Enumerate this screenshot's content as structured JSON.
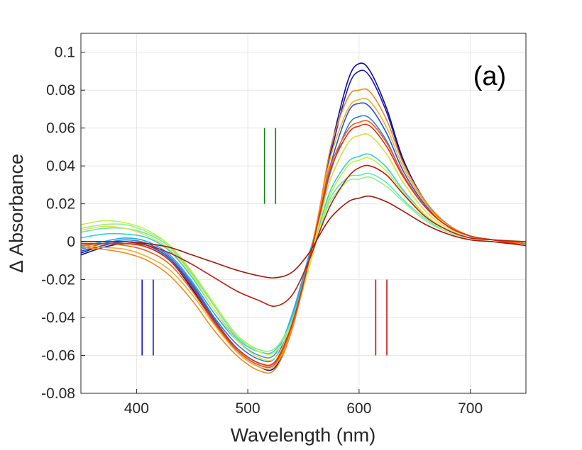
{
  "chart_data": {
    "type": "line",
    "title": "",
    "panel_label": "(a)",
    "xlabel": "Wavelength (nm)",
    "ylabel": "Δ Absorbance",
    "xlim": [
      350,
      750
    ],
    "ylim": [
      -0.08,
      0.11
    ],
    "xticks": [
      400,
      500,
      600,
      700
    ],
    "xtick_labels": [
      "400",
      "500",
      "600",
      "700"
    ],
    "yticks": [
      -0.08,
      -0.06,
      -0.04,
      -0.02,
      0,
      0.02,
      0.04,
      0.06,
      0.08,
      0.1
    ],
    "ytick_labels": [
      "-0.08",
      "-0.06",
      "-0.04",
      "-0.02",
      "0",
      "0.02",
      "0.04",
      "0.06",
      "0.08",
      "0.1"
    ],
    "grid": true,
    "legend": "none",
    "x_points": [
      350,
      370,
      390,
      410,
      430,
      450,
      470,
      490,
      510,
      525,
      540,
      555,
      565,
      575,
      590,
      600,
      610,
      625,
      640,
      660,
      680,
      700,
      720,
      750
    ],
    "series": [
      {
        "color": "#0b0b8e",
        "values": [
          -0.007,
          -0.003,
          -0.001,
          -0.003,
          -0.01,
          -0.025,
          -0.043,
          -0.058,
          -0.066,
          -0.066,
          -0.045,
          -0.01,
          0.018,
          0.05,
          0.085,
          0.094,
          0.09,
          0.07,
          0.043,
          0.021,
          0.009,
          0.003,
          0.001,
          -0.001
        ]
      },
      {
        "color": "#1a1ab0",
        "values": [
          -0.006,
          -0.002,
          0.0,
          -0.002,
          -0.009,
          -0.024,
          -0.042,
          -0.057,
          -0.065,
          -0.064,
          -0.043,
          -0.009,
          0.017,
          0.047,
          0.081,
          0.09,
          0.087,
          0.068,
          0.042,
          0.021,
          0.009,
          0.003,
          0.001,
          -0.001
        ]
      },
      {
        "color": "#2255d8",
        "values": [
          -0.005,
          -0.002,
          0.0,
          -0.002,
          -0.009,
          -0.023,
          -0.041,
          -0.056,
          -0.064,
          -0.063,
          -0.042,
          -0.009,
          0.016,
          0.042,
          0.068,
          0.073,
          0.071,
          0.057,
          0.037,
          0.019,
          0.008,
          0.003,
          0.001,
          -0.001
        ]
      },
      {
        "color": "#2e7fe0",
        "values": [
          -0.004,
          -0.001,
          0.001,
          -0.001,
          -0.008,
          -0.022,
          -0.04,
          -0.054,
          -0.062,
          -0.061,
          -0.04,
          -0.008,
          0.015,
          0.038,
          0.061,
          0.066,
          0.065,
          0.053,
          0.035,
          0.018,
          0.008,
          0.003,
          0.001,
          -0.001
        ]
      },
      {
        "color": "#33a3e6",
        "values": [
          -0.003,
          0.0,
          0.002,
          0.0,
          -0.007,
          -0.021,
          -0.038,
          -0.052,
          -0.06,
          -0.059,
          -0.038,
          -0.007,
          0.014,
          0.034,
          0.052,
          0.056,
          0.056,
          0.046,
          0.031,
          0.016,
          0.007,
          0.003,
          0.001,
          -0.001
        ]
      },
      {
        "color": "#30d0d8",
        "values": [
          0.002,
          0.004,
          0.004,
          0.002,
          -0.005,
          -0.019,
          -0.036,
          -0.051,
          -0.058,
          -0.057,
          -0.04,
          -0.01,
          0.01,
          0.028,
          0.042,
          0.045,
          0.046,
          0.039,
          0.027,
          0.014,
          0.006,
          0.002,
          0.001,
          0.0
        ]
      },
      {
        "color": "#60e8b0",
        "values": [
          0.005,
          0.007,
          0.007,
          0.004,
          -0.003,
          -0.017,
          -0.034,
          -0.05,
          -0.057,
          -0.056,
          -0.041,
          -0.012,
          0.008,
          0.024,
          0.034,
          0.035,
          0.036,
          0.031,
          0.022,
          0.012,
          0.005,
          0.002,
          0.001,
          0.0
        ]
      },
      {
        "color": "#90f090",
        "values": [
          0.007,
          0.009,
          0.009,
          0.005,
          -0.002,
          -0.016,
          -0.033,
          -0.049,
          -0.057,
          -0.056,
          -0.042,
          -0.013,
          0.007,
          0.022,
          0.032,
          0.033,
          0.034,
          0.029,
          0.021,
          0.011,
          0.005,
          0.002,
          0.001,
          0.0
        ]
      },
      {
        "color": "#c8f040",
        "values": [
          0.009,
          0.011,
          0.01,
          0.006,
          -0.002,
          -0.016,
          -0.033,
          -0.049,
          -0.058,
          -0.058,
          -0.043,
          -0.014,
          0.008,
          0.026,
          0.04,
          0.043,
          0.044,
          0.037,
          0.026,
          0.014,
          0.006,
          0.002,
          0.001,
          0.0
        ]
      },
      {
        "color": "#f0e040",
        "values": [
          0.006,
          0.008,
          0.007,
          0.003,
          -0.004,
          -0.018,
          -0.036,
          -0.052,
          -0.061,
          -0.061,
          -0.044,
          -0.012,
          0.012,
          0.034,
          0.052,
          0.056,
          0.056,
          0.046,
          0.031,
          0.016,
          0.007,
          0.003,
          0.001,
          0.0
        ]
      },
      {
        "color": "#f0b030",
        "values": [
          -0.002,
          -0.003,
          -0.004,
          -0.008,
          -0.015,
          -0.028,
          -0.044,
          -0.058,
          -0.066,
          -0.065,
          -0.045,
          -0.01,
          0.018,
          0.046,
          0.07,
          0.075,
          0.074,
          0.06,
          0.039,
          0.02,
          0.008,
          0.003,
          0.001,
          -0.001
        ]
      },
      {
        "color": "#f08a20",
        "values": [
          -0.003,
          -0.004,
          -0.006,
          -0.01,
          -0.018,
          -0.031,
          -0.047,
          -0.06,
          -0.068,
          -0.067,
          -0.046,
          -0.01,
          0.019,
          0.051,
          0.076,
          0.08,
          0.079,
          0.064,
          0.041,
          0.021,
          0.009,
          0.003,
          0.001,
          -0.001
        ]
      },
      {
        "color": "#f06018",
        "values": [
          -0.002,
          -0.001,
          -0.002,
          -0.005,
          -0.012,
          -0.026,
          -0.043,
          -0.057,
          -0.065,
          -0.064,
          -0.044,
          -0.01,
          0.016,
          0.041,
          0.059,
          0.063,
          0.063,
          0.052,
          0.035,
          0.018,
          0.008,
          0.003,
          0.001,
          -0.001
        ]
      },
      {
        "color": "#e03010",
        "values": [
          -0.001,
          -0.001,
          -0.001,
          -0.003,
          -0.01,
          -0.024,
          -0.042,
          -0.056,
          -0.064,
          -0.063,
          -0.043,
          -0.01,
          0.015,
          0.039,
          0.057,
          0.061,
          0.061,
          0.05,
          0.034,
          0.018,
          0.008,
          0.003,
          0.001,
          -0.002
        ]
      },
      {
        "color": "#b82010",
        "values": [
          0.0,
          0.0,
          0.0,
          -0.002,
          -0.006,
          -0.012,
          -0.019,
          -0.026,
          -0.031,
          -0.034,
          -0.028,
          -0.01,
          0.006,
          0.02,
          0.034,
          0.039,
          0.04,
          0.035,
          0.025,
          0.013,
          0.006,
          0.002,
          0.001,
          0.0
        ]
      },
      {
        "color": "#a01808",
        "values": [
          0.0,
          0.0,
          0.0,
          -0.001,
          -0.003,
          -0.007,
          -0.011,
          -0.015,
          -0.018,
          -0.019,
          -0.016,
          -0.006,
          0.004,
          0.013,
          0.021,
          0.023,
          0.024,
          0.021,
          0.016,
          0.009,
          0.004,
          0.001,
          0.0,
          -0.002
        ]
      }
    ],
    "annotations": [
      {
        "kind": "vertical-line",
        "x": 405,
        "y_from": -0.06,
        "y_to": -0.02,
        "color": "#1010c0"
      },
      {
        "kind": "vertical-line",
        "x": 415,
        "y_from": -0.06,
        "y_to": -0.02,
        "color": "#1010c0"
      },
      {
        "kind": "vertical-line",
        "x": 515,
        "y_from": 0.02,
        "y_to": 0.06,
        "color": "#108010"
      },
      {
        "kind": "vertical-line",
        "x": 525,
        "y_from": 0.02,
        "y_to": 0.06,
        "color": "#108010"
      },
      {
        "kind": "vertical-line",
        "x": 615,
        "y_from": -0.06,
        "y_to": -0.02,
        "color": "#c01010"
      },
      {
        "kind": "vertical-line",
        "x": 625,
        "y_from": -0.06,
        "y_to": -0.02,
        "color": "#c01010"
      }
    ]
  }
}
